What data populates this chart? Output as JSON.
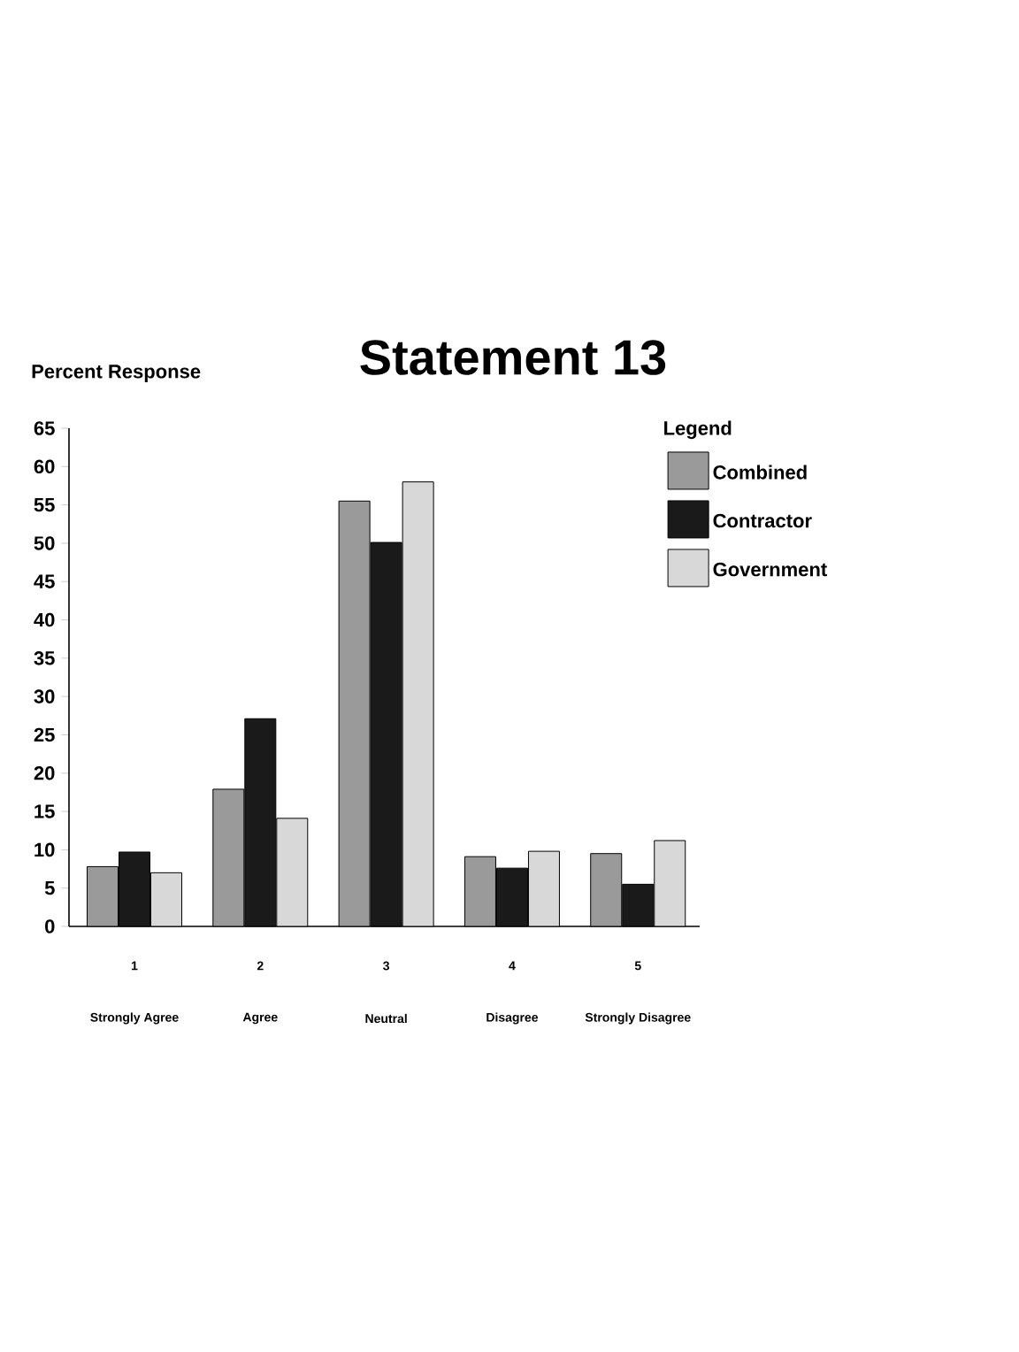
{
  "chart_data": {
    "type": "bar",
    "title": "Statement 13",
    "ylabel": "Percent Response",
    "legend_title": "Legend",
    "categories": [
      "1",
      "2",
      "3",
      "4",
      "5"
    ],
    "annotations": [
      "Strongly Agree",
      "Agree",
      "Neutral",
      "Disagree",
      "Strongly Disagree"
    ],
    "series": [
      {
        "name": "Combined",
        "color": "#9a9a9a",
        "values": [
          7.8,
          17.9,
          55.5,
          9.1,
          9.5
        ]
      },
      {
        "name": "Contractor",
        "color": "#1a1a1a",
        "values": [
          9.7,
          27.1,
          50.1,
          7.6,
          5.5
        ]
      },
      {
        "name": "Government",
        "color": "#d8d8d8",
        "values": [
          7.0,
          14.1,
          58.0,
          9.8,
          11.2
        ]
      }
    ],
    "ylim": [
      0,
      65
    ],
    "yticks": [
      0,
      5,
      10,
      15,
      20,
      25,
      30,
      35,
      40,
      45,
      50,
      55,
      60,
      65
    ],
    "grid": false,
    "legend": "top right"
  }
}
